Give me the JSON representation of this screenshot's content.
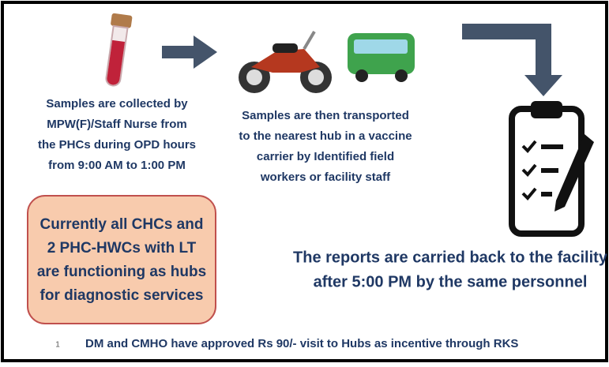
{
  "step1": {
    "lines": [
      "Samples are collected by",
      "MPW(F)/Staff Nurse from",
      "the PHCs during OPD hours",
      "from 9:00 AM to 1:00 PM"
    ]
  },
  "step2": {
    "lines": [
      "Samples are then transported",
      "to the nearest hub in a vaccine",
      "carrier by Identified field",
      "workers or facility staff"
    ]
  },
  "hubs": {
    "lines": [
      "Currently all CHCs and",
      "2 PHC-HWCs with LT",
      "are functioning as  hubs",
      "for diagnostic services"
    ]
  },
  "step3": {
    "lines": [
      "The reports are carried back to the facility",
      "after 5:00 PM by the same personnel"
    ]
  },
  "footnote": {
    "number": "1",
    "text": "DM and CMHO have approved Rs 90/- visit to Hubs as incentive through RKS"
  }
}
